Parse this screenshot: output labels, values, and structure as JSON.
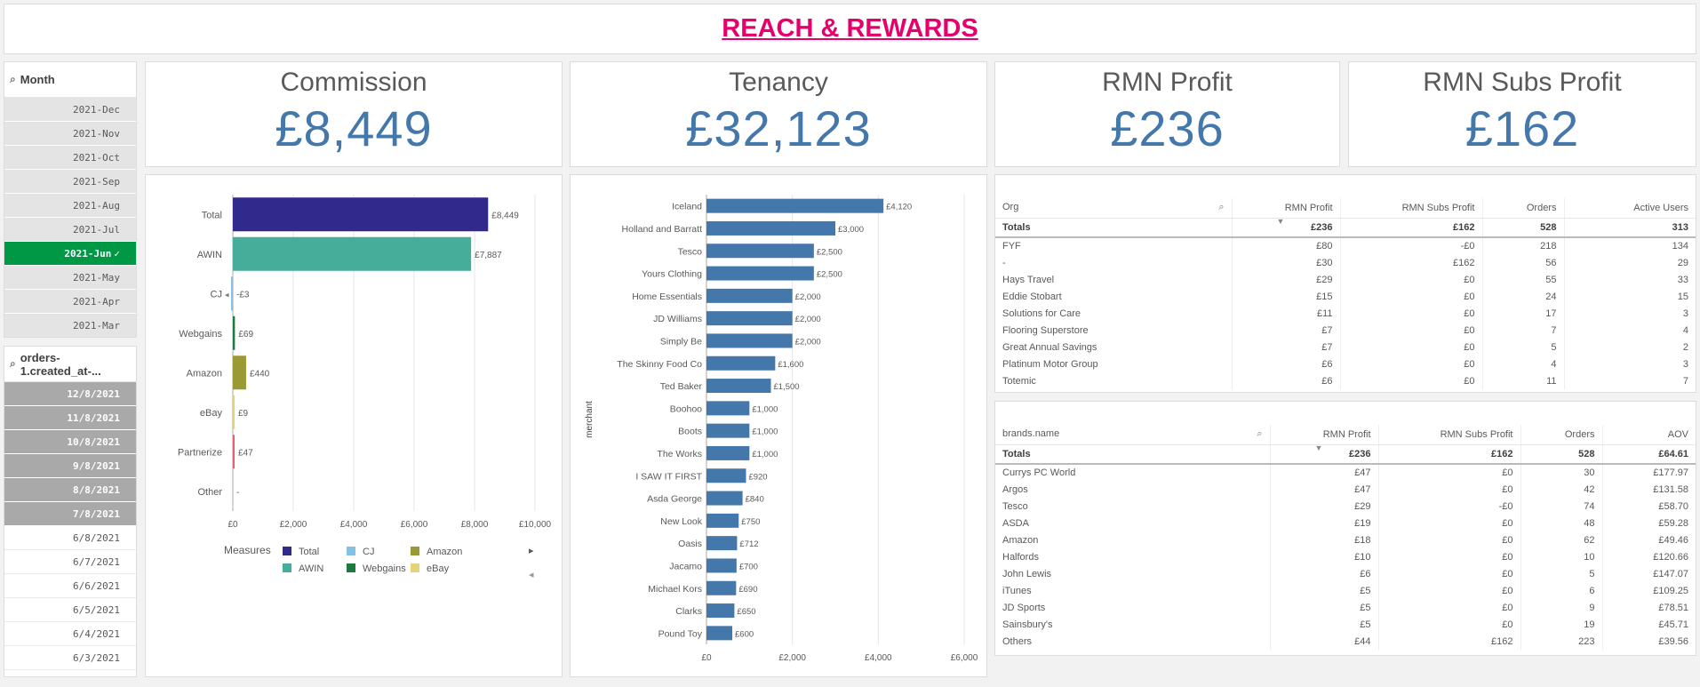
{
  "title": "REACH & REWARDS",
  "month_filter": {
    "label": "Month",
    "items": [
      {
        "label": "2021-Dec",
        "state": "grey"
      },
      {
        "label": "2021-Nov",
        "state": "grey"
      },
      {
        "label": "2021-Oct",
        "state": "grey"
      },
      {
        "label": "2021-Sep",
        "state": "grey"
      },
      {
        "label": "2021-Aug",
        "state": "grey"
      },
      {
        "label": "2021-Jul",
        "state": "grey"
      },
      {
        "label": "2021-Jun",
        "state": "selected",
        "check": "✓"
      },
      {
        "label": "2021-May",
        "state": "grey"
      },
      {
        "label": "2021-Apr",
        "state": "grey"
      },
      {
        "label": "2021-Mar",
        "state": "grey"
      }
    ]
  },
  "date_filter": {
    "label": "orders-1.created_at-...",
    "items": [
      {
        "label": "12/8/2021",
        "state": "dark"
      },
      {
        "label": "11/8/2021",
        "state": "dark"
      },
      {
        "label": "10/8/2021",
        "state": "dark"
      },
      {
        "label": "9/8/2021",
        "state": "dark"
      },
      {
        "label": "8/8/2021",
        "state": "dark"
      },
      {
        "label": "7/8/2021",
        "state": "dark"
      },
      {
        "label": "6/8/2021",
        "state": "white"
      },
      {
        "label": "6/7/2021",
        "state": "white"
      },
      {
        "label": "6/6/2021",
        "state": "white"
      },
      {
        "label": "6/5/2021",
        "state": "white"
      },
      {
        "label": "6/4/2021",
        "state": "white"
      },
      {
        "label": "6/3/2021",
        "state": "white"
      }
    ]
  },
  "kpis": {
    "commission": {
      "label": "Commission",
      "value": "£8,449"
    },
    "tenancy": {
      "label": "Tenancy",
      "value": "£32,123"
    },
    "rmn_profit": {
      "label": "RMN Profit",
      "value": "£236"
    },
    "rmn_subs_profit": {
      "label": "RMN Subs Profit",
      "value": "£162"
    }
  },
  "chart_data": [
    {
      "type": "bar",
      "orientation": "horizontal",
      "categories": [
        "Total",
        "AWIN",
        "CJ",
        "Webgains",
        "Amazon",
        "eBay",
        "Partnerize",
        "Other"
      ],
      "values": [
        8449,
        7887,
        -3,
        69,
        440,
        9,
        47,
        null
      ],
      "value_labels": [
        "£8,449",
        "£7,887",
        "-£3",
        "£69",
        "£440",
        "£9",
        "£47",
        "-"
      ],
      "colors": [
        "#31298c",
        "#46ad9a",
        "#85c1e6",
        "#1c7a3e",
        "#9a9a35",
        "#e6d27a",
        "#e66072",
        "#cccccc"
      ],
      "cj_marker": "◂",
      "x_ticks": [
        "£0",
        "£2,000",
        "£4,000",
        "£6,000",
        "£8,000",
        "£10,000"
      ],
      "xlim": [
        0,
        10000
      ],
      "legend": {
        "title": "Measures",
        "items": [
          {
            "label": "Total",
            "color": "#31298c"
          },
          {
            "label": "CJ",
            "color": "#85c1e6"
          },
          {
            "label": "Amazon",
            "color": "#9a9a35"
          },
          {
            "label": "AWIN",
            "color": "#46ad9a"
          },
          {
            "label": "Webgains",
            "color": "#1c7a3e"
          },
          {
            "label": "eBay",
            "color": "#e6d27a"
          }
        ],
        "next_arrow": "▸",
        "prev_arrow": "◂"
      }
    },
    {
      "type": "bar",
      "orientation": "horizontal",
      "ylabel": "merchant",
      "categories": [
        "Iceland",
        "Holland and Barratt",
        "Tesco",
        "Yours Clothing",
        "Home Essentials",
        "JD Williams",
        "Simply Be",
        "The Skinny Food Co",
        "Ted Baker",
        "Boohoo",
        "Boots",
        "The Works",
        "I SAW IT FIRST",
        "Asda George",
        "New Look",
        "Oasis",
        "Jacamo",
        "Michael Kors",
        "Clarks",
        "Pound Toy"
      ],
      "values": [
        4120,
        3000,
        2500,
        2500,
        2000,
        2000,
        2000,
        1600,
        1500,
        1000,
        1000,
        1000,
        920,
        840,
        750,
        712,
        700,
        690,
        650,
        600
      ],
      "value_labels": [
        "£4,120",
        "£3,000",
        "£2,500",
        "£2,500",
        "£2,000",
        "£2,000",
        "£2,000",
        "£1,600",
        "£1,500",
        "£1,000",
        "£1,000",
        "£1,000",
        "£920",
        "£840",
        "£750",
        "£712",
        "£700",
        "£690",
        "£650",
        "£600"
      ],
      "color": "#4477aa",
      "x_ticks": [
        "£0",
        "£2,000",
        "£4,000",
        "£6,000"
      ],
      "xlim": [
        0,
        6000
      ]
    }
  ],
  "org_table": {
    "headers": [
      "Org",
      "RMN Profit",
      "RMN Subs Profit",
      "Orders",
      "Active Users"
    ],
    "totals": [
      "Totals",
      "£236",
      "£162",
      "528",
      "313"
    ],
    "rows": [
      [
        "FYF",
        "£80",
        "-£0",
        "218",
        "134"
      ],
      [
        "-",
        "£30",
        "£162",
        "56",
        "29"
      ],
      [
        "Hays Travel",
        "£29",
        "£0",
        "55",
        "33"
      ],
      [
        "Eddie Stobart",
        "£15",
        "£0",
        "24",
        "15"
      ],
      [
        "Solutions for Care",
        "£11",
        "£0",
        "17",
        "3"
      ],
      [
        "Flooring Superstore",
        "£7",
        "£0",
        "7",
        "4"
      ],
      [
        "Great Annual Savings",
        "£7",
        "£0",
        "5",
        "2"
      ],
      [
        "Platinum Motor Group",
        "£6",
        "£0",
        "4",
        "3"
      ],
      [
        "Totemic",
        "£6",
        "£0",
        "11",
        "7"
      ]
    ]
  },
  "brands_table": {
    "headers": [
      "brands.name",
      "RMN Profit",
      "RMN Subs Profit",
      "Orders",
      "AOV"
    ],
    "totals": [
      "Totals",
      "£236",
      "£162",
      "528",
      "£64.61"
    ],
    "rows": [
      [
        "Currys PC World",
        "£47",
        "£0",
        "30",
        "£177.97"
      ],
      [
        "Argos",
        "£47",
        "£0",
        "42",
        "£131.58"
      ],
      [
        "Tesco",
        "£29",
        "-£0",
        "74",
        "£58.70"
      ],
      [
        "ASDA",
        "£19",
        "£0",
        "48",
        "£59.28"
      ],
      [
        "Amazon",
        "£18",
        "£0",
        "62",
        "£49.46"
      ],
      [
        "Halfords",
        "£10",
        "£0",
        "10",
        "£120.66"
      ],
      [
        "John Lewis",
        "£6",
        "£0",
        "5",
        "£147.07"
      ],
      [
        "iTunes",
        "£5",
        "£0",
        "6",
        "£109.25"
      ],
      [
        "JD Sports",
        "£5",
        "£0",
        "9",
        "£78.51"
      ],
      [
        "Sainsbury's",
        "£5",
        "£0",
        "19",
        "£45.71"
      ],
      [
        "Others",
        "£44",
        "£162",
        "223",
        "£39.56"
      ]
    ]
  },
  "icons": {
    "search": "search-icon",
    "sort": "sort-desc-icon"
  }
}
